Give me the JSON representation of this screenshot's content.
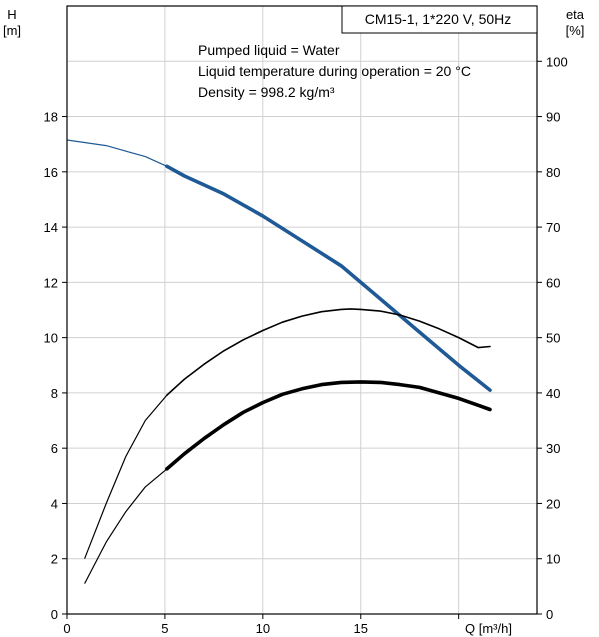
{
  "chart_data": {
    "type": "line",
    "title": "CM15-1, 1*220 V, 50Hz",
    "annotations": [
      "Pumped liquid = Water",
      "Liquid temperature during operation = 20 °C",
      "Density = 998.2 kg/m³"
    ],
    "xlabel": "Q [m³/h]",
    "ylabel_left": [
      "H",
      "[m]"
    ],
    "ylabel_right": [
      "eta",
      "[%]"
    ],
    "xlim": [
      0,
      24
    ],
    "ylim_left": [
      0,
      22
    ],
    "ylim_right": [
      0,
      110
    ],
    "x_ticks": [
      0,
      5,
      10,
      15
    ],
    "y_ticks_left": [
      0,
      2,
      4,
      6,
      8,
      10,
      12,
      14,
      16,
      18
    ],
    "y_ticks_right": [
      0,
      10,
      20,
      30,
      40,
      50,
      60,
      70,
      80,
      90,
      100
    ],
    "grid": true,
    "duty_range": [
      5.1,
      21.6
    ],
    "series": [
      {
        "axis": "left",
        "color": "#1f5a96",
        "x": [
          0,
          2,
          4,
          5.1,
          6,
          8,
          10,
          12,
          14,
          16,
          18,
          20,
          21.6
        ],
        "y": [
          17.15,
          16.95,
          16.55,
          16.2,
          15.85,
          15.2,
          14.4,
          13.5,
          12.6,
          11.4,
          10.2,
          9.0,
          8.1
        ]
      },
      {
        "axis": "right",
        "color": "#000000",
        "x": [
          0.9,
          2,
          3,
          4,
          5.1,
          6,
          7,
          8,
          9,
          10,
          11,
          12,
          13,
          14,
          14.5,
          15,
          16,
          17,
          18,
          19,
          20,
          21,
          21.6
        ],
        "y": [
          10,
          20,
          28.5,
          35,
          39.6,
          42.5,
          45.2,
          47.6,
          49.6,
          51.3,
          52.8,
          53.9,
          54.7,
          55.1,
          55.2,
          55.1,
          54.8,
          54.1,
          53.0,
          51.6,
          50.0,
          48.2,
          48.4
        ]
      },
      {
        "axis": "left",
        "color": "#000000",
        "x": [
          0.9,
          2,
          3,
          4,
          5.1,
          6,
          7,
          8,
          9,
          10,
          11,
          12,
          13,
          14,
          15,
          16,
          17,
          18,
          19,
          20,
          21,
          21.6
        ],
        "y": [
          1.1,
          2.6,
          3.7,
          4.6,
          5.25,
          5.8,
          6.35,
          6.85,
          7.3,
          7.65,
          7.95,
          8.15,
          8.3,
          8.38,
          8.4,
          8.38,
          8.3,
          8.2,
          8.0,
          7.8,
          7.55,
          7.4
        ]
      }
    ]
  }
}
